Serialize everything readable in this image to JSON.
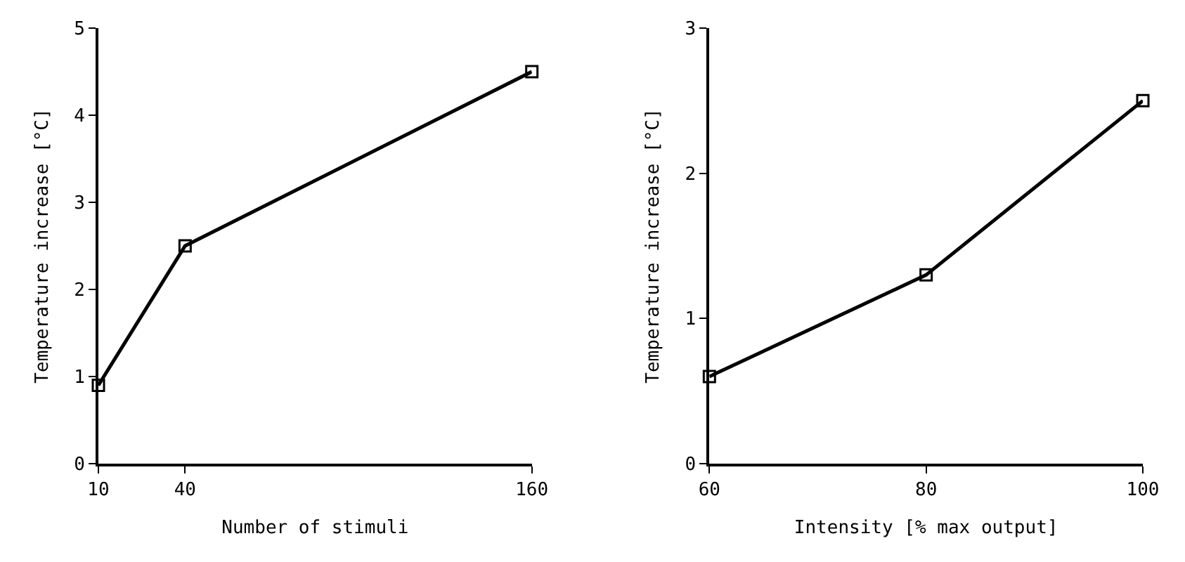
{
  "chart_data": [
    {
      "type": "line",
      "xlabel": "Number of stimuli",
      "ylabel": "Temperature increase [°C]",
      "x": [
        10,
        40,
        160
      ],
      "values": [
        0.9,
        2.5,
        4.5
      ],
      "color": "#000000",
      "marker": "square",
      "line_style": "solid",
      "xlim": [
        10,
        160
      ],
      "xticks": [
        10,
        40,
        160
      ],
      "ylim": [
        0,
        5
      ],
      "yticks": [
        0,
        1,
        2,
        3,
        4,
        5
      ]
    },
    {
      "type": "line",
      "xlabel": "Intensity [% max output]",
      "ylabel": "Temperature increase [°C]",
      "x": [
        60,
        80,
        100
      ],
      "values": [
        0.6,
        1.3,
        2.5
      ],
      "color": "#000000",
      "marker": "square",
      "line_style": "solid",
      "xlim": [
        60,
        100
      ],
      "xticks": [
        60,
        80,
        100
      ],
      "ylim": [
        0,
        3
      ],
      "yticks": [
        0,
        1,
        2,
        3
      ]
    }
  ]
}
